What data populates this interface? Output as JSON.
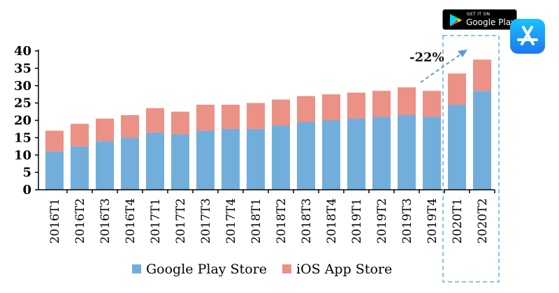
{
  "chart_data": {
    "type": "bar",
    "stacked": true,
    "categories": [
      "2016T1",
      "2016T2",
      "2016T3",
      "2016T4",
      "2017T1",
      "2017T2",
      "2017T3",
      "2017T4",
      "2018T1",
      "2018T2",
      "2018T3",
      "2018T4",
      "2019T1",
      "2019T2",
      "2019T3",
      "2019T4",
      "2020T1",
      "2020T2"
    ],
    "series": [
      {
        "name": "Google Play Store",
        "color": "#72aedb",
        "values": [
          11,
          12.5,
          14,
          15,
          16.5,
          16,
          17,
          17.5,
          17.5,
          18.5,
          19.5,
          20,
          20.5,
          21,
          21.5,
          21,
          24.5,
          28.5
        ]
      },
      {
        "name": "iOS App Store",
        "color": "#ec9186",
        "values": [
          6,
          6.5,
          6.5,
          6.5,
          7,
          6.5,
          7.5,
          7,
          7.5,
          7.5,
          7.5,
          7.5,
          7.5,
          7.5,
          8,
          7.5,
          9,
          9
        ]
      }
    ],
    "yticks": [
      "0",
      "5",
      "10",
      "15",
      "20",
      "25",
      "30",
      "35",
      "40"
    ],
    "ylim": [
      0,
      40
    ],
    "grid": false,
    "legend": "bottom",
    "annotation": "-22%",
    "highlight": [
      "2020T1",
      "2020T2"
    ]
  },
  "badges": {
    "google_play_small": "GET IT ON",
    "google_play_big": "Google Play"
  },
  "icons": {
    "google_play": "google-play-icon",
    "app_store": "app-store-icon"
  }
}
